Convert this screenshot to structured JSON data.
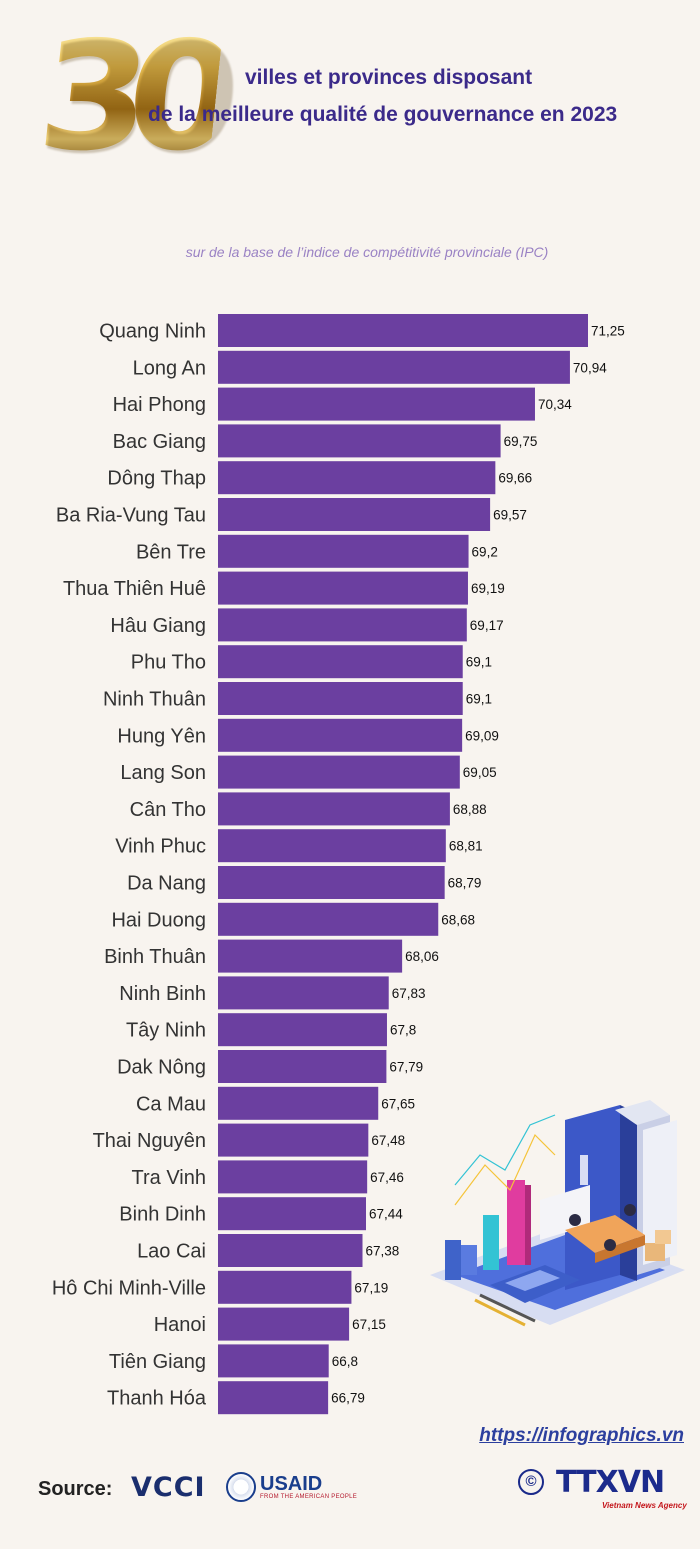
{
  "header": {
    "big_number": "30",
    "title_line_1": "villes et provinces disposant",
    "title_line_2": "de la meilleure qualité de gouvernance en 2023",
    "subtitle": "sur de la base de l’indice de compétitivité provinciale (IPC)"
  },
  "chart_data": {
    "type": "bar",
    "orientation": "horizontal",
    "categories": [
      "Quang Ninh",
      "Long An",
      "Hai Phong",
      "Bac Giang",
      "Dông Thap",
      "Ba Ria-Vung Tau",
      "Bên Tre",
      "Thua Thiên Huê",
      "Hâu Giang",
      "Phu Tho",
      "Ninh Thuân",
      "Hung Yên",
      "Lang Son",
      "Cân Tho",
      "Vinh Phuc",
      "Da Nang",
      "Hai Duong",
      "Binh Thuân",
      "Ninh Binh",
      "Tây Ninh",
      "Dak Nông",
      "Ca Mau",
      "Thai Nguyên",
      "Tra Vinh",
      "Binh Dinh",
      "Lao Cai",
      "Hô Chi Minh-Ville",
      "Hanoi",
      "Tiên Giang",
      "Thanh Hóa"
    ],
    "values": [
      71.25,
      70.94,
      70.34,
      69.75,
      69.66,
      69.57,
      69.2,
      69.19,
      69.17,
      69.1,
      69.1,
      69.09,
      69.05,
      68.88,
      68.81,
      68.79,
      68.68,
      68.06,
      67.83,
      67.8,
      67.79,
      67.65,
      67.48,
      67.46,
      67.44,
      67.38,
      67.19,
      67.15,
      66.8,
      66.79
    ],
    "value_labels": [
      "71,25",
      "70,94",
      "70,34",
      "69,75",
      "69,66",
      "69,57",
      "69,2",
      "69,19",
      "69,17",
      "69,1",
      "69,1",
      "69,09",
      "69,05",
      "68,88",
      "68,81",
      "68,79",
      "68,68",
      "68,06",
      "67,83",
      "67,8",
      "67,79",
      "67,65",
      "67,48",
      "67,46",
      "67,44",
      "67,38",
      "67,19",
      "67,15",
      "66,8",
      "66,79"
    ],
    "xlim": [
      64.9,
      71.25
    ],
    "grid": false,
    "colors": {
      "bar": "#6b3fa0"
    }
  },
  "footer": {
    "website": "https://infographics.vn",
    "source_label": "Source:",
    "vcci": "VCCI",
    "usaid": "USAID",
    "usaid_tagline": "FROM THE AMERICAN PEOPLE",
    "copyright": "©",
    "ttxvn": "TTXVN",
    "ttxvn_tagline": "Vietnam News Agency"
  }
}
